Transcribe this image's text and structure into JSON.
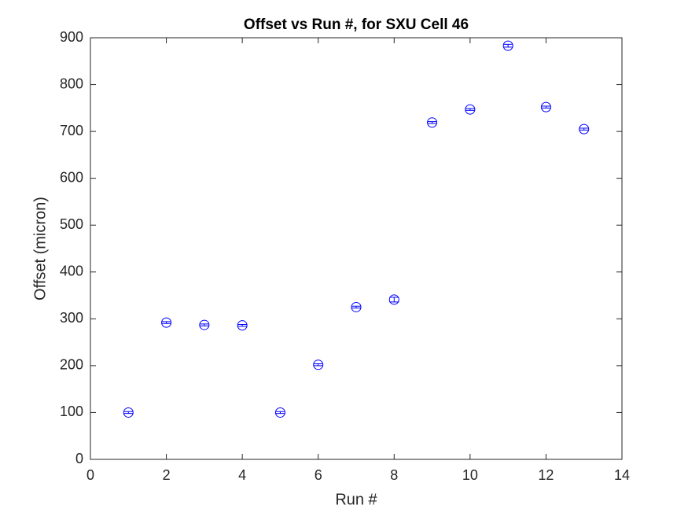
{
  "chart_data": {
    "type": "errorbar",
    "title": "Offset vs Run #, for SXU Cell 46",
    "xlabel": "Run #",
    "ylabel": "Offset (micron)",
    "x": [
      1,
      2,
      3,
      4,
      5,
      6,
      7,
      8,
      9,
      10,
      11,
      12,
      13
    ],
    "values": [
      100,
      292,
      287,
      286,
      100,
      202,
      325,
      341,
      719,
      747,
      883,
      752,
      705
    ],
    "errors": [
      2,
      2,
      2,
      2,
      2,
      2,
      2,
      5,
      2,
      2,
      3,
      2,
      2
    ],
    "color": "#0000ff",
    "xlim": [
      0,
      14
    ],
    "xticks": [
      0,
      2,
      4,
      6,
      8,
      10,
      12,
      14
    ],
    "ylim": [
      0,
      900
    ],
    "yticks": [
      0,
      100,
      200,
      300,
      400,
      500,
      600,
      700,
      800,
      900
    ]
  }
}
